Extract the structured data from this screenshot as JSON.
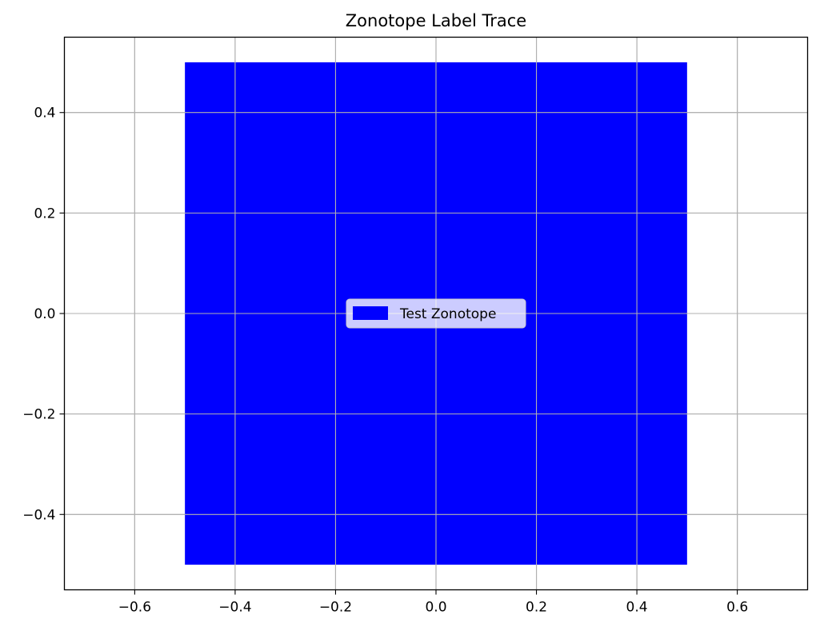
{
  "chart_data": {
    "type": "area",
    "title": "Zonotope Label Trace",
    "xlabel": "",
    "ylabel": "",
    "xlim": [
      -0.74,
      0.74
    ],
    "ylim": [
      -0.55,
      0.55
    ],
    "x_ticks": [
      {
        "value": -0.6,
        "label": "−0.6"
      },
      {
        "value": -0.4,
        "label": "−0.4"
      },
      {
        "value": -0.2,
        "label": "−0.2"
      },
      {
        "value": 0.0,
        "label": "0.0"
      },
      {
        "value": 0.2,
        "label": "0.2"
      },
      {
        "value": 0.4,
        "label": "0.4"
      },
      {
        "value": 0.6,
        "label": "0.6"
      }
    ],
    "y_ticks": [
      {
        "value": -0.4,
        "label": "−0.4"
      },
      {
        "value": -0.2,
        "label": "−0.2"
      },
      {
        "value": 0.0,
        "label": "0.0"
      },
      {
        "value": 0.2,
        "label": "0.2"
      },
      {
        "value": 0.4,
        "label": "0.4"
      }
    ],
    "grid": true,
    "legend_position": "center",
    "series": [
      {
        "name": "Test Zonotope",
        "color": "#0000ff",
        "vertices": [
          [
            -0.5,
            -0.5
          ],
          [
            0.5,
            -0.5
          ],
          [
            0.5,
            0.5
          ],
          [
            -0.5,
            0.5
          ]
        ]
      }
    ]
  }
}
